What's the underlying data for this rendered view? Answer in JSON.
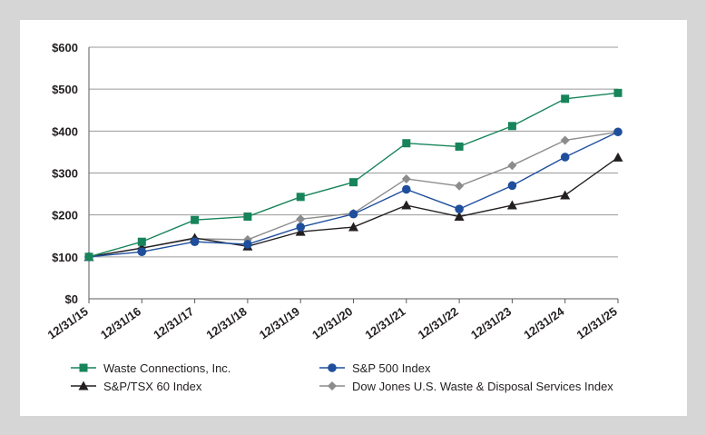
{
  "chart_data": {
    "type": "line",
    "title": "",
    "xlabel": "",
    "ylabel": "",
    "categories": [
      "12/31/15",
      "12/31/16",
      "12/31/17",
      "12/31/18",
      "12/31/19",
      "12/31/20",
      "12/31/21",
      "12/31/22",
      "12/31/23",
      "12/31/24",
      "12/31/25"
    ],
    "y_ticks": [
      "$0",
      "$100",
      "$200",
      "$300",
      "$400",
      "$500",
      "$600"
    ],
    "ylim": [
      0,
      600
    ],
    "grid": true,
    "legend_position": "bottom",
    "series": [
      {
        "name": "Waste Connections, Inc.",
        "color": "#17845a",
        "marker": "square",
        "values": [
          100,
          136,
          188,
          196,
          243,
          278,
          371,
          363,
          412,
          477,
          491
        ]
      },
      {
        "name": "S&P 500 Index",
        "color": "#1f4e9c",
        "marker": "circle",
        "values": [
          100,
          112,
          136,
          130,
          171,
          202,
          261,
          214,
          270,
          338,
          398
        ]
      },
      {
        "name": "S&P/TSX 60 Index",
        "color": "#231f20",
        "marker": "triangle",
        "values": [
          100,
          121,
          145,
          125,
          160,
          171,
          223,
          196,
          223,
          247,
          337
        ]
      },
      {
        "name": "Dow Jones U.S.  Waste & Disposal Services Index",
        "color": "#8c8c8c",
        "marker": "diamond",
        "values": [
          100,
          121,
          143,
          141,
          190,
          204,
          286,
          269,
          318,
          378,
          398
        ]
      }
    ]
  }
}
